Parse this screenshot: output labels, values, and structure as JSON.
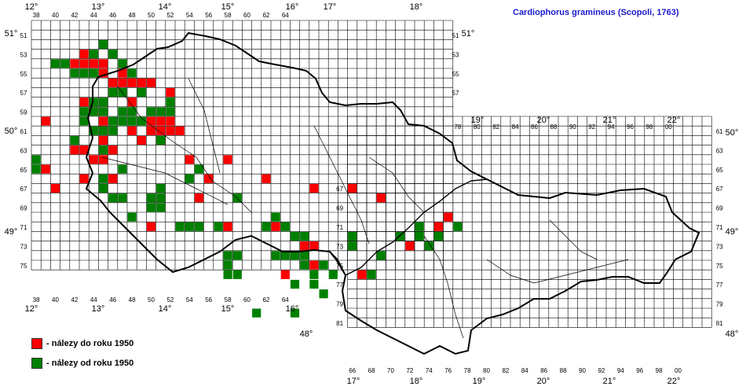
{
  "title": "Cardiophorus gramineus (Scopoli, 1763)",
  "colors": {
    "before_1950": "#ff0000",
    "since_1950": "#008000",
    "title": "#1a1ad0"
  },
  "legend": [
    {
      "label": "- nálezy do roku 1950",
      "color": "#ff0000"
    },
    {
      "label": "- nálezy od roku 1950",
      "color": "#008000"
    }
  ],
  "west_grid": {
    "column_labels": [
      "38",
      "40",
      "42",
      "44",
      "46",
      "48",
      "50",
      "52",
      "54",
      "56",
      "58",
      "60",
      "62",
      "64"
    ],
    "row_labels": [
      "51",
      "53",
      "55",
      "57",
      "59",
      "61",
      "63",
      "65",
      "67",
      "69",
      "71",
      "73",
      "75"
    ],
    "longitude_labels": [
      "12°",
      "13°",
      "14°",
      "15°",
      "16°"
    ],
    "latitude_labels": [
      "51°",
      "50°",
      "49°"
    ]
  },
  "east_grid": {
    "column_labels_top": [
      "78",
      "80",
      "82",
      "84",
      "86",
      "88",
      "90",
      "92",
      "94",
      "96",
      "98",
      "00"
    ],
    "column_labels_bottom": [
      "66",
      "68",
      "70",
      "72",
      "74",
      "76",
      "78",
      "80",
      "82",
      "84",
      "86",
      "88",
      "90",
      "92",
      "94",
      "96",
      "98",
      "00"
    ],
    "row_labels": [
      "61",
      "63",
      "65",
      "67",
      "69",
      "71",
      "73",
      "75",
      "77",
      "79",
      "81"
    ],
    "longitude_labels_top": [
      "17°",
      "18°",
      "19°",
      "20°",
      "21°",
      "22°"
    ],
    "longitude_labels_bottom": [
      "17°",
      "18°",
      "19°",
      "20°",
      "21°",
      "22°"
    ],
    "latitude_labels": [
      "50°",
      "49°",
      "48°"
    ]
  },
  "records": {
    "before_1950": [
      [
        5,
        53
      ],
      [
        4,
        54
      ],
      [
        5,
        54
      ],
      [
        6,
        54
      ],
      [
        7,
        54
      ],
      [
        9,
        55
      ],
      [
        7,
        55
      ],
      [
        8,
        56
      ],
      [
        9,
        56
      ],
      [
        10,
        56
      ],
      [
        11,
        56
      ],
      [
        12,
        56
      ],
      [
        14,
        57
      ],
      [
        5,
        58
      ],
      [
        10,
        58
      ],
      [
        6,
        59
      ],
      [
        7,
        60
      ],
      [
        12,
        60
      ],
      [
        13,
        60
      ],
      [
        14,
        60
      ],
      [
        1,
        60
      ],
      [
        7,
        61
      ],
      [
        10,
        61
      ],
      [
        12,
        61
      ],
      [
        13,
        61
      ],
      [
        14,
        61
      ],
      [
        15,
        61
      ],
      [
        7,
        62
      ],
      [
        11,
        62
      ],
      [
        13,
        62
      ],
      [
        4,
        63
      ],
      [
        5,
        63
      ],
      [
        8,
        63
      ],
      [
        6,
        64
      ],
      [
        7,
        64
      ],
      [
        1,
        65
      ],
      [
        5,
        66
      ],
      [
        2,
        67
      ],
      [
        8,
        66
      ],
      [
        16,
        64
      ],
      [
        18,
        66
      ],
      [
        20,
        64
      ],
      [
        24,
        66
      ],
      [
        29,
        67
      ],
      [
        33,
        67
      ],
      [
        17,
        68
      ],
      [
        12,
        71
      ],
      [
        20,
        71
      ],
      [
        25,
        71
      ],
      [
        28,
        73
      ],
      [
        29,
        73
      ],
      [
        26,
        76
      ],
      [
        29,
        75
      ],
      [
        34,
        76
      ],
      [
        39,
        73
      ],
      [
        36,
        68
      ],
      [
        42,
        71
      ],
      [
        43,
        70
      ]
    ],
    "since_1950": [
      [
        7,
        52
      ],
      [
        6,
        53
      ],
      [
        8,
        53
      ],
      [
        2,
        54
      ],
      [
        3,
        54
      ],
      [
        4,
        55
      ],
      [
        5,
        55
      ],
      [
        6,
        55
      ],
      [
        9,
        54
      ],
      [
        10,
        55
      ],
      [
        8,
        57
      ],
      [
        9,
        57
      ],
      [
        11,
        57
      ],
      [
        14,
        58
      ],
      [
        6,
        58
      ],
      [
        7,
        58
      ],
      [
        5,
        59
      ],
      [
        6,
        59
      ],
      [
        7,
        59
      ],
      [
        8,
        60
      ],
      [
        9,
        60
      ],
      [
        10,
        60
      ],
      [
        11,
        60
      ],
      [
        12,
        59
      ],
      [
        13,
        59
      ],
      [
        14,
        59
      ],
      [
        10,
        59
      ],
      [
        9,
        59
      ],
      [
        6,
        61
      ],
      [
        7,
        61
      ],
      [
        8,
        61
      ],
      [
        5,
        60
      ],
      [
        13,
        62
      ],
      [
        7,
        63
      ],
      [
        4,
        62
      ],
      [
        0,
        64
      ],
      [
        0,
        65
      ],
      [
        9,
        65
      ],
      [
        7,
        66
      ],
      [
        7,
        67
      ],
      [
        8,
        68
      ],
      [
        9,
        68
      ],
      [
        10,
        70
      ],
      [
        12,
        69
      ],
      [
        13,
        67
      ],
      [
        13,
        68
      ],
      [
        13,
        69
      ],
      [
        12,
        68
      ],
      [
        16,
        66
      ],
      [
        17,
        65
      ],
      [
        15,
        71
      ],
      [
        16,
        71
      ],
      [
        17,
        71
      ],
      [
        19,
        71
      ],
      [
        21,
        68
      ],
      [
        24,
        71
      ],
      [
        25,
        70
      ],
      [
        26,
        71
      ],
      [
        25,
        74
      ],
      [
        26,
        74
      ],
      [
        27,
        74
      ],
      [
        27,
        72
      ],
      [
        28,
        72
      ],
      [
        28,
        74
      ],
      [
        28,
        75
      ],
      [
        29,
        76
      ],
      [
        27,
        77
      ],
      [
        20,
        74
      ],
      [
        21,
        74
      ],
      [
        20,
        76
      ],
      [
        21,
        76
      ],
      [
        20,
        75
      ],
      [
        23,
        80
      ],
      [
        27,
        80
      ],
      [
        30,
        75
      ],
      [
        31,
        76
      ],
      [
        33,
        72
      ],
      [
        33,
        73
      ],
      [
        35,
        76
      ],
      [
        36,
        74
      ],
      [
        40,
        71
      ],
      [
        40,
        72
      ],
      [
        41,
        73
      ],
      [
        42,
        72
      ],
      [
        44,
        71
      ],
      [
        38,
        72
      ],
      [
        29,
        77
      ],
      [
        30,
        78
      ]
    ]
  }
}
